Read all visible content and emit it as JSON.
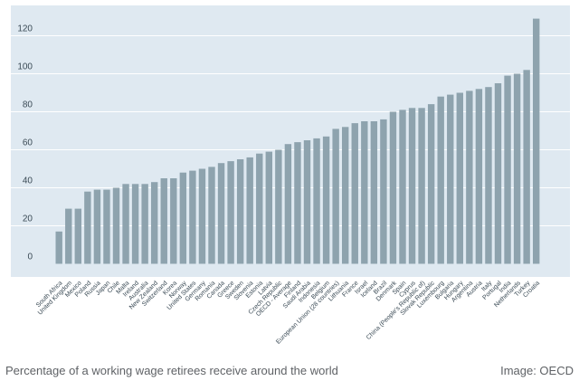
{
  "caption": "Percentage of a working wage retirees receive around the world",
  "credit": "Image: OECD",
  "chart_data": {
    "type": "bar",
    "ylim": [
      0,
      130
    ],
    "y_ticks": [
      0,
      20,
      40,
      60,
      80,
      100,
      120
    ],
    "grid": true,
    "colors": {
      "plot_bg": "#dfe9f1",
      "bar": "#8ea3ae",
      "grid": "#ffffff",
      "tick_text": "#3a4a55"
    },
    "categories": [
      "South Africa",
      "United Kingdom",
      "Mexico",
      "Poland",
      "Russia",
      "Japan",
      "Chile",
      "Malta",
      "Ireland",
      "Australia",
      "New Zealand",
      "Switzerland",
      "Korea",
      "Norway",
      "United States",
      "Germany",
      "Romania",
      "Canada",
      "Greece",
      "Sweden",
      "Slovenia",
      "Estonia",
      "Latvia",
      "Czech Republic",
      "OECD - Average",
      "Finland",
      "Saudi Arabia",
      "Indonesia",
      "Belgium",
      "European Union (28 countries)",
      "Lithuania",
      "France",
      "Israel",
      "Iceland",
      "Brazil",
      "Denmark",
      "Spain",
      "Cyprus",
      "China (People's Republic of)",
      "Slovak Republic",
      "Luxembourg",
      "Bulgaria",
      "Hungary",
      "Argentina",
      "Austria",
      "Italy",
      "Portugal",
      "India",
      "Netherlands",
      "Turkey",
      "Croatia"
    ],
    "values": [
      17,
      29,
      29,
      38,
      39,
      39,
      40,
      42,
      42,
      42,
      43,
      45,
      45,
      48,
      49,
      50,
      51,
      53,
      54,
      55,
      56,
      58,
      59,
      60,
      63,
      64,
      65,
      66,
      67,
      71,
      72,
      74,
      75,
      75,
      76,
      80,
      81,
      82,
      82,
      84,
      88,
      89,
      90,
      91,
      92,
      93,
      95,
      99,
      100,
      102,
      129
    ]
  }
}
